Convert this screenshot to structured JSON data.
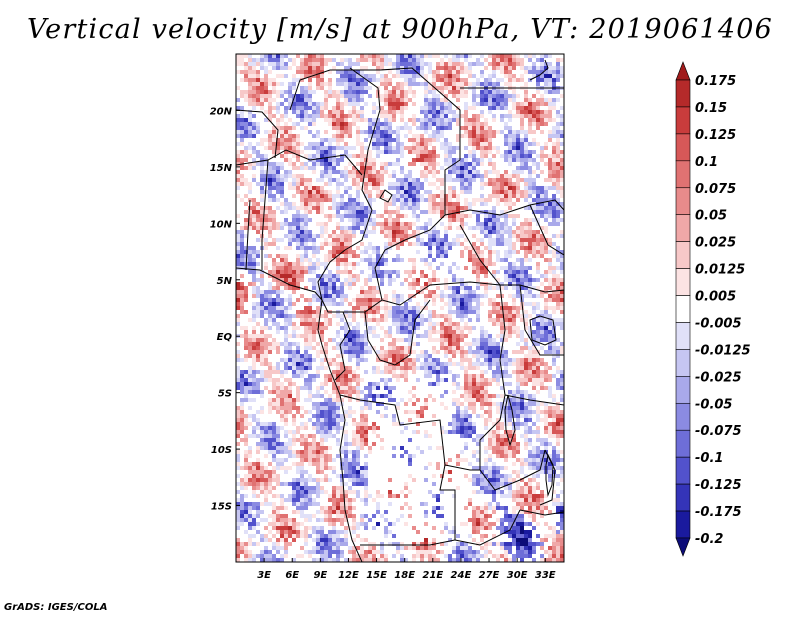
{
  "chart_data": {
    "type": "heatmap",
    "title": "Vertical velocity [m/s] at 900hPa, VT: 2019061406",
    "variable": "Vertical velocity",
    "units": "m/s",
    "level": "900hPa",
    "valid_time": "2019061406",
    "x_range_deg_lon": [
      0,
      35
    ],
    "y_range_deg_lat": [
      -20,
      25
    ],
    "x_ticks": [
      {
        "value": 3,
        "label": "3E"
      },
      {
        "value": 6,
        "label": "6E"
      },
      {
        "value": 9,
        "label": "9E"
      },
      {
        "value": 12,
        "label": "12E"
      },
      {
        "value": 15,
        "label": "15E"
      },
      {
        "value": 18,
        "label": "18E"
      },
      {
        "value": 21,
        "label": "21E"
      },
      {
        "value": 24,
        "label": "24E"
      },
      {
        "value": 27,
        "label": "27E"
      },
      {
        "value": 30,
        "label": "30E"
      },
      {
        "value": 33,
        "label": "33E"
      }
    ],
    "y_ticks": [
      {
        "value": 20,
        "label": "20N"
      },
      {
        "value": 15,
        "label": "15N"
      },
      {
        "value": 10,
        "label": "10N"
      },
      {
        "value": 5,
        "label": "5N"
      },
      {
        "value": 0,
        "label": "EQ"
      },
      {
        "value": -5,
        "label": "5S"
      },
      {
        "value": -10,
        "label": "10S"
      },
      {
        "value": -15,
        "label": "15S"
      }
    ],
    "colorbar": {
      "levels": [
        "0.175",
        "0.15",
        "0.125",
        "0.1",
        "0.075",
        "0.05",
        "0.025",
        "0.0125",
        "0.005",
        "-0.005",
        "-0.0125",
        "-0.025",
        "-0.05",
        "-0.075",
        "-0.1",
        "-0.125",
        "-0.175",
        "-0.2"
      ],
      "colors": [
        "#a01b1b",
        "#b52a2a",
        "#c93c3c",
        "#d75858",
        "#e07272",
        "#e88b8b",
        "#f0a8a8",
        "#f7c8c8",
        "#fce3e3",
        "#ffffff",
        "#e0e0f8",
        "#c6c6f2",
        "#a9a9ea",
        "#8b8be2",
        "#6e6ed8",
        "#5252cc",
        "#3434b8",
        "#1a1a9e",
        "#0c0c78"
      ]
    }
  },
  "footer": {
    "credit": "GrADS: IGES/COLA"
  }
}
